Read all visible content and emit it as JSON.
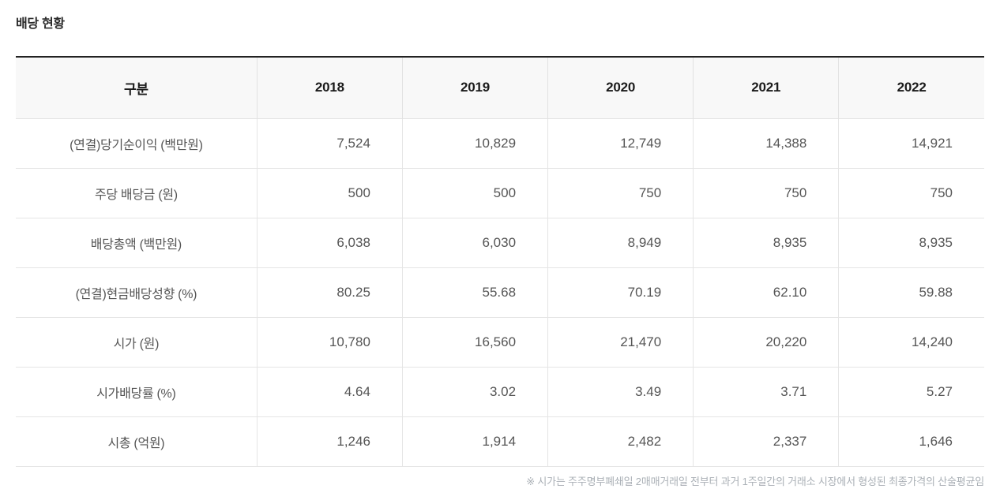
{
  "page": {
    "title": "배당 현황",
    "footnote": "※ 시가는 주주명부폐쇄일 2매매거래일 전부터 과거 1주일간의 거래소 시장에서 형성된 최종가격의 산술평균임"
  },
  "table": {
    "columns": [
      "구분",
      "2018",
      "2019",
      "2020",
      "2021",
      "2022"
    ],
    "rows": [
      {
        "label": "(연결)당기순이익 (백만원)",
        "values": [
          "7,524",
          "10,829",
          "12,749",
          "14,388",
          "14,921"
        ]
      },
      {
        "label": "주당 배당금 (원)",
        "values": [
          "500",
          "500",
          "750",
          "750",
          "750"
        ]
      },
      {
        "label": "배당총액 (백만원)",
        "values": [
          "6,038",
          "6,030",
          "8,949",
          "8,935",
          "8,935"
        ]
      },
      {
        "label": "(연결)현금배당성향 (%)",
        "values": [
          "80.25",
          "55.68",
          "70.19",
          "62.10",
          "59.88"
        ]
      },
      {
        "label": "시가 (원)",
        "values": [
          "10,780",
          "16,560",
          "21,470",
          "20,220",
          "14,240"
        ]
      },
      {
        "label": "시가배당률 (%)",
        "values": [
          "4.64",
          "3.02",
          "3.49",
          "3.71",
          "5.27"
        ]
      },
      {
        "label": "시총 (억원)",
        "values": [
          "1,246",
          "1,914",
          "2,482",
          "2,337",
          "1,646"
        ]
      }
    ]
  },
  "colors": {
    "table_top_border": "#222222",
    "grid_line": "#e5e5e5",
    "header_background": "#f8f8f8",
    "header_text": "#1b1b1b",
    "cell_text": "#555555",
    "footnote_text": "#aab0b6"
  }
}
